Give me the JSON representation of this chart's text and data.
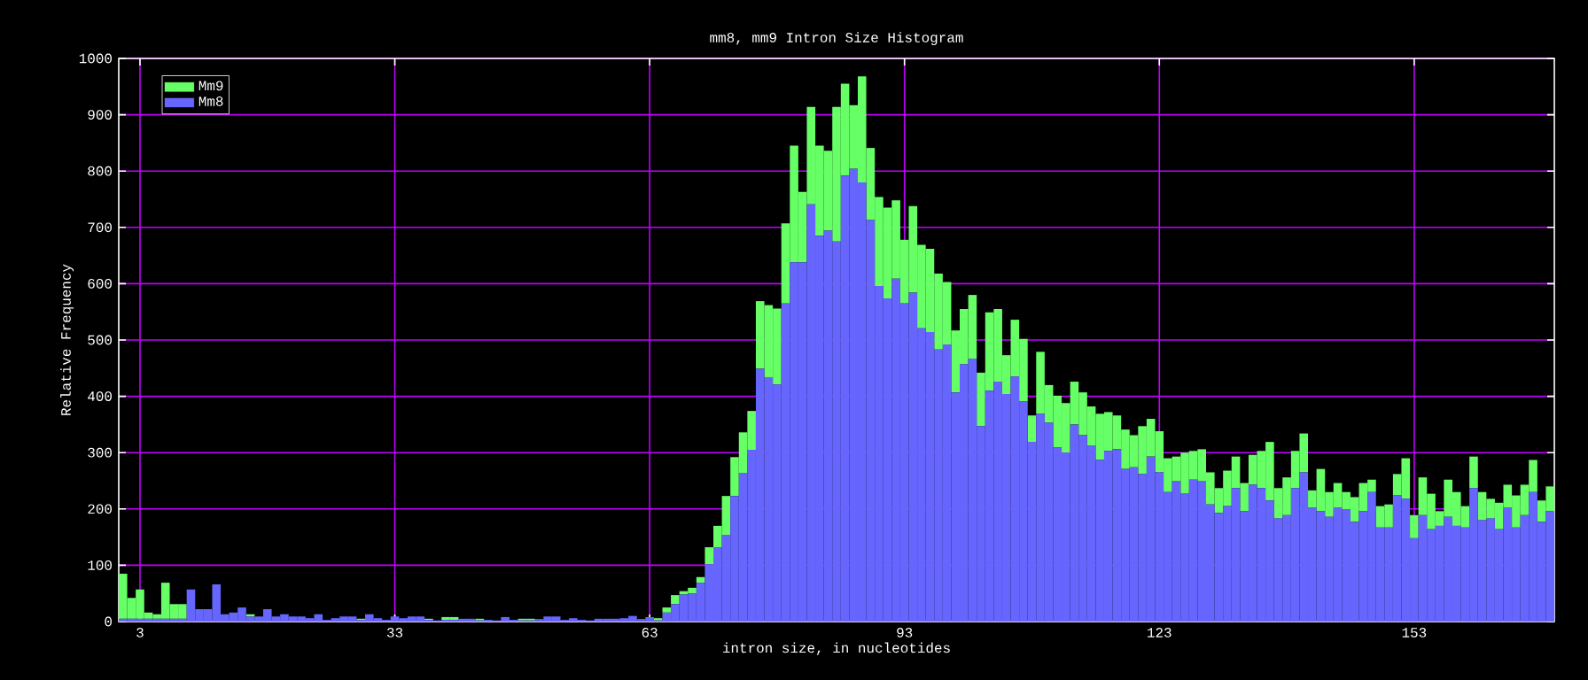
{
  "chart_data": {
    "type": "bar",
    "title": "mm8, mm9 Intron Size Histogram",
    "xlabel": "intron size, in nucleotides",
    "ylabel": "Relative Frequency",
    "x": [
      1,
      2,
      3,
      4,
      5,
      6,
      7,
      8,
      9,
      10,
      11,
      12,
      13,
      14,
      15,
      16,
      17,
      18,
      19,
      20,
      21,
      22,
      23,
      24,
      25,
      26,
      27,
      28,
      29,
      30,
      31,
      32,
      33,
      34,
      35,
      36,
      37,
      38,
      39,
      40,
      41,
      42,
      43,
      44,
      45,
      46,
      47,
      48,
      49,
      50,
      51,
      52,
      53,
      54,
      55,
      56,
      57,
      58,
      59,
      60,
      61,
      62,
      63,
      64,
      65,
      66,
      67,
      68,
      69,
      70,
      71,
      72,
      73,
      74,
      75,
      76,
      77,
      78,
      79,
      80,
      81,
      82,
      83,
      84,
      85,
      86,
      87,
      88,
      89,
      90,
      91,
      92,
      93,
      94,
      95,
      96,
      97,
      98,
      99,
      100,
      101,
      102,
      103,
      104,
      105,
      106,
      107,
      108,
      109,
      110,
      111,
      112,
      113,
      114,
      115,
      116,
      117,
      118,
      119,
      120,
      121,
      122,
      123,
      124,
      125,
      126,
      127,
      128,
      129,
      130,
      131,
      132,
      133,
      134,
      135,
      136,
      137,
      138,
      139,
      140,
      141,
      142,
      143,
      144,
      145,
      146,
      147,
      148,
      149,
      150,
      151,
      152,
      153,
      154,
      155,
      156,
      157,
      158,
      159,
      160,
      161,
      162,
      163,
      164,
      165,
      166,
      167,
      168,
      169
    ],
    "series": [
      {
        "name": "Mm8",
        "color": "#6666ff",
        "values": [
          5,
          5,
          5,
          5,
          5,
          5,
          5,
          5,
          57,
          22,
          22,
          66,
          13,
          16,
          25,
          9,
          9,
          22,
          9,
          13,
          9,
          9,
          6,
          13,
          3,
          6,
          9,
          9,
          3,
          13,
          6,
          3,
          9,
          6,
          9,
          9,
          3,
          2,
          3,
          3,
          5,
          5,
          2,
          3,
          2,
          8,
          3,
          2,
          2,
          3,
          9,
          9,
          3,
          6,
          3,
          2,
          5,
          5,
          5,
          6,
          10,
          3,
          8,
          2,
          16,
          31,
          48,
          50,
          69,
          102,
          132,
          154,
          223,
          264,
          305,
          449,
          434,
          421,
          565,
          638,
          638,
          741,
          685,
          694,
          675,
          792,
          804,
          780,
          713,
          596,
          574,
          609,
          565,
          584,
          521,
          514,
          483,
          492,
          407,
          457,
          467,
          347,
          410,
          426,
          404,
          435,
          391,
          319,
          369,
          353,
          309,
          300,
          350,
          331,
          312,
          287,
          303,
          306,
          271,
          274,
          262,
          293,
          265,
          230,
          249,
          227,
          252,
          249,
          208,
          193,
          205,
          237,
          196,
          243,
          237,
          215,
          183,
          189,
          237,
          265,
          202,
          196,
          186,
          202,
          199,
          177,
          196,
          230,
          167,
          167,
          224,
          218,
          148,
          189,
          164,
          170,
          186,
          170,
          167,
          237,
          180,
          183,
          164,
          202,
          167,
          189,
          230,
          177,
          196
        ]
      },
      {
        "name": "Mm9",
        "color": "#66ff66",
        "values": [
          80,
          37,
          52,
          11,
          8,
          64,
          26,
          26,
          0,
          0,
          0,
          0,
          0,
          0,
          0,
          4,
          0,
          0,
          0,
          0,
          0,
          0,
          0,
          0,
          0,
          0,
          0,
          0,
          2,
          0,
          0,
          0,
          0,
          0,
          0,
          0,
          2,
          0,
          5,
          5,
          0,
          0,
          3,
          0,
          0,
          0,
          0,
          3,
          3,
          1,
          0,
          0,
          0,
          0,
          0,
          0,
          0,
          0,
          0,
          0,
          0,
          1,
          0,
          4,
          9,
          16,
          6,
          10,
          10,
          30,
          38,
          69,
          69,
          72,
          69,
          120,
          128,
          135,
          142,
          207,
          125,
          173,
          160,
          142,
          239,
          163,
          113,
          188,
          128,
          158,
          161,
          139,
          113,
          154,
          148,
          148,
          135,
          111,
          110,
          98,
          113,
          95,
          139,
          129,
          69,
          101,
          111,
          47,
          110,
          67,
          92,
          88,
          76,
          76,
          70,
          82,
          69,
          60,
          70,
          57,
          85,
          67,
          73,
          60,
          44,
          73,
          51,
          57,
          57,
          44,
          63,
          56,
          50,
          53,
          66,
          104,
          54,
          67,
          66,
          69,
          31,
          75,
          44,
          44,
          31,
          44,
          50,
          22,
          38,
          41,
          38,
          72,
          41,
          67,
          63,
          26,
          66,
          60,
          38,
          56,
          50,
          35,
          47,
          41,
          57,
          54,
          57,
          38,
          44
        ]
      }
    ],
    "stacked": true,
    "xlim": [
      0.5,
      169.5
    ],
    "ylim": [
      0,
      1000
    ],
    "xticks": [
      3,
      33,
      63,
      93,
      123,
      153
    ],
    "yticks": [
      0,
      100,
      200,
      300,
      400,
      500,
      600,
      700,
      800,
      900,
      1000
    ],
    "grid": true,
    "legend": "top left"
  }
}
